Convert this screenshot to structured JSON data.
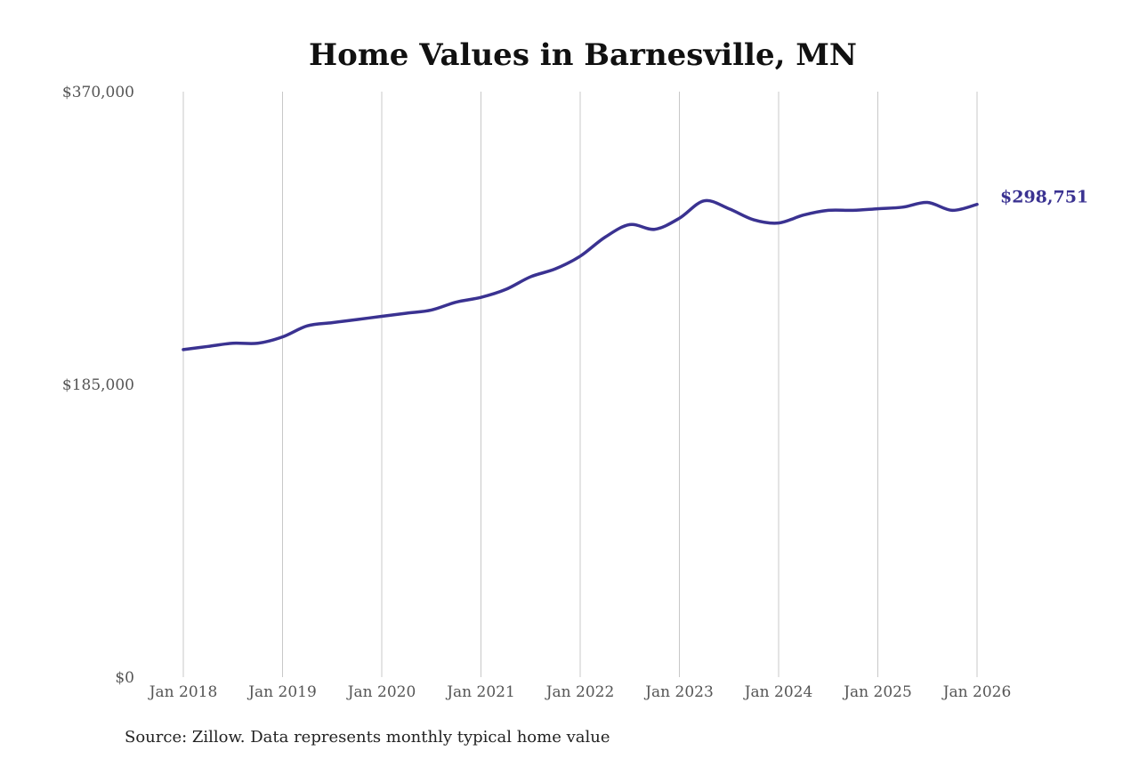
{
  "chart_data": {
    "type": "line",
    "title": "Home Values in Barnesville, MN",
    "subtitle": "",
    "xlabel": "",
    "ylabel": "",
    "ylim": [
      0,
      370000
    ],
    "y_ticks": [
      {
        "value": 0,
        "label": "$0"
      },
      {
        "value": 185000,
        "label": "$185,000"
      },
      {
        "value": 370000,
        "label": "$370,000"
      }
    ],
    "x_ticks": [
      {
        "value": "2018-01",
        "label": "Jan 2018"
      },
      {
        "value": "2019-01",
        "label": "Jan 2019"
      },
      {
        "value": "2020-01",
        "label": "Jan 2020"
      },
      {
        "value": "2021-01",
        "label": "Jan 2021"
      },
      {
        "value": "2022-01",
        "label": "Jan 2022"
      },
      {
        "value": "2023-01",
        "label": "Jan 2023"
      },
      {
        "value": "2024-01",
        "label": "Jan 2024"
      },
      {
        "value": "2025-01",
        "label": "Jan 2025"
      },
      {
        "value": "2026-01",
        "label": "Jan 2026"
      }
    ],
    "grid": {
      "vertical": true,
      "horizontal": false
    },
    "line_color": "#3a3291",
    "series": [
      {
        "name": "",
        "x": [
          "2018-01",
          "2018-04",
          "2018-07",
          "2018-10",
          "2019-01",
          "2019-04",
          "2019-07",
          "2019-10",
          "2020-01",
          "2020-04",
          "2020-07",
          "2020-10",
          "2021-01",
          "2021-04",
          "2021-07",
          "2021-10",
          "2022-01",
          "2022-04",
          "2022-07",
          "2022-10",
          "2023-01",
          "2023-04",
          "2023-07",
          "2023-10",
          "2024-01",
          "2024-04",
          "2024-07",
          "2024-10",
          "2025-01",
          "2025-04",
          "2025-07",
          "2025-10",
          "2026-01"
        ],
        "values": [
          207000,
          209000,
          211000,
          211000,
          215000,
          222000,
          224000,
          226000,
          228000,
          230000,
          232000,
          237000,
          240000,
          245000,
          253000,
          258000,
          266000,
          278000,
          286000,
          283000,
          290000,
          301000,
          296000,
          289000,
          287000,
          292000,
          295000,
          295000,
          296000,
          297000,
          300000,
          295000,
          298751
        ]
      }
    ],
    "end_label": {
      "x": "2026-01",
      "value": 298751,
      "text": "$298,751"
    },
    "source": "Source: Zillow. Data represents monthly typical home value"
  }
}
